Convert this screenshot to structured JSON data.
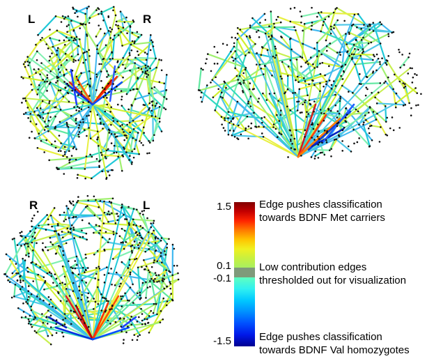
{
  "panels": {
    "axial": {
      "left_label": "L",
      "right_label": "R"
    },
    "sagittal": {},
    "coronal": {
      "left_label": "R",
      "right_label": "L"
    }
  },
  "colorbar": {
    "colors": {
      "max": "#7f0000",
      "upper": [
        "#800000",
        "#c40000",
        "#ff2400",
        "#ff7a00",
        "#ffc400",
        "#f0f020",
        "#c8f040",
        "#a8f060"
      ],
      "gray": "#7f9a7a",
      "lower": [
        "#60ffc0",
        "#30f0f0",
        "#00c8ff",
        "#0090ff",
        "#0050ff",
        "#0018e8",
        "#000090"
      ]
    },
    "ticks": {
      "max": "1.5",
      "pos_threshold": "0.1",
      "neg_threshold": "-0.1",
      "min": "-1.5"
    },
    "annotations": {
      "top_line1": "Edge pushes classification",
      "top_line2": "towards BDNF Met carriers",
      "mid_line1": "Low contribution edges",
      "mid_line2": "thresholded out for visualization",
      "bottom_line1": "Edge pushes classification",
      "bottom_line2": "towards BDNF Val homozygotes"
    }
  }
}
